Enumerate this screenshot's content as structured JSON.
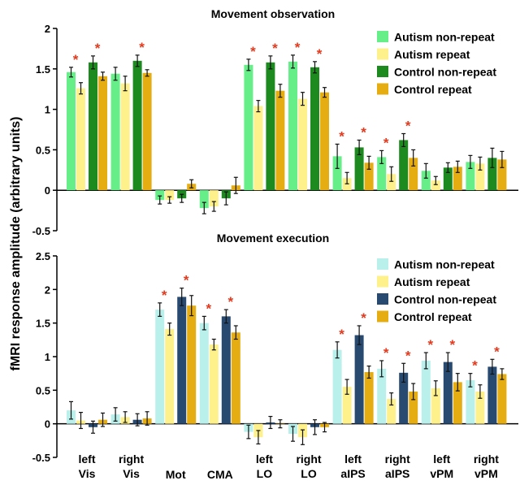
{
  "figure": {
    "ylabel": "fMRI response amplitude (arbitrary units)",
    "categories": [
      "left\nVis",
      "right\nVis",
      "Mot",
      "CMA",
      "left\nLO",
      "right\nLO",
      "left\naIPS",
      "right\naIPS",
      "left\nvPM",
      "right\nvPM"
    ]
  },
  "chart_data": [
    {
      "type": "bar",
      "title": "Movement observation",
      "ylabel": "fMRI response amplitude (arbitrary units)",
      "ylim": [
        -0.5,
        2
      ],
      "yticks": [
        -0.5,
        0,
        0.5,
        1,
        1.5,
        2
      ],
      "ytick_labels": [
        "-0.5",
        "0",
        "0.5",
        "1",
        "1.5",
        "2"
      ],
      "legend_position": "top-right",
      "categories": [
        "left Vis",
        "right Vis",
        "Mot",
        "CMA",
        "left LO",
        "right LO",
        "left aIPS",
        "right aIPS",
        "left vPM",
        "right vPM"
      ],
      "series": [
        {
          "name": "Autism non-repeat",
          "color": "#66ee88",
          "values": [
            1.46,
            1.44,
            -0.12,
            -0.22,
            1.55,
            1.59,
            0.42,
            0.41,
            0.24,
            0.35
          ],
          "errors": [
            0.06,
            0.08,
            0.05,
            0.07,
            0.07,
            0.08,
            0.15,
            0.08,
            0.09,
            0.08
          ]
        },
        {
          "name": "Autism repeat",
          "color": "#fef08a",
          "values": [
            1.26,
            1.32,
            -0.12,
            -0.2,
            1.04,
            1.13,
            0.15,
            0.2,
            0.12,
            0.33
          ],
          "errors": [
            0.07,
            0.09,
            0.04,
            0.06,
            0.07,
            0.08,
            0.07,
            0.09,
            0.05,
            0.08
          ]
        },
        {
          "name": "Control non-repeat",
          "color": "#1c8a1e",
          "values": [
            1.58,
            1.6,
            -0.1,
            -0.1,
            1.58,
            1.52,
            0.53,
            0.62,
            0.28,
            0.4
          ],
          "errors": [
            0.08,
            0.07,
            0.05,
            0.08,
            0.08,
            0.07,
            0.09,
            0.08,
            0.06,
            0.12
          ]
        },
        {
          "name": "Control repeat",
          "color": "#e5ad12",
          "values": [
            1.41,
            1.45,
            0.08,
            0.06,
            1.23,
            1.21,
            0.34,
            0.4,
            0.29,
            0.38
          ],
          "errors": [
            0.05,
            0.04,
            0.05,
            0.1,
            0.08,
            0.06,
            0.08,
            0.1,
            0.07,
            0.1
          ]
        }
      ],
      "significance_markers": [
        {
          "category": "left Vis",
          "group": "Autism"
        },
        {
          "category": "left Vis",
          "group": "Control"
        },
        {
          "category": "right Vis",
          "group": "Control"
        },
        {
          "category": "left LO",
          "group": "Autism"
        },
        {
          "category": "left LO",
          "group": "Control"
        },
        {
          "category": "right LO",
          "group": "Autism"
        },
        {
          "category": "right LO",
          "group": "Control"
        },
        {
          "category": "left aIPS",
          "group": "Autism"
        },
        {
          "category": "left aIPS",
          "group": "Control"
        },
        {
          "category": "right aIPS",
          "group": "Autism"
        },
        {
          "category": "right aIPS",
          "group": "Control"
        }
      ],
      "significance_symbol": "*"
    },
    {
      "type": "bar",
      "title": "Movement execution",
      "ylabel": "fMRI response amplitude (arbitrary units)",
      "ylim": [
        -0.5,
        2.5
      ],
      "yticks": [
        -0.5,
        0,
        0.5,
        1,
        1.5,
        2,
        2.5
      ],
      "ytick_labels": [
        "-0.5",
        "0",
        "0.5",
        "1",
        "1.5",
        "2",
        "2.5"
      ],
      "legend_position": "top-right",
      "categories": [
        "left Vis",
        "right Vis",
        "Mot",
        "CMA",
        "left LO",
        "right LO",
        "left aIPS",
        "right aIPS",
        "left vPM",
        "right vPM"
      ],
      "series": [
        {
          "name": "Autism non-repeat",
          "color": "#b9f0ec",
          "values": [
            0.2,
            0.14,
            1.7,
            1.5,
            -0.12,
            -0.15,
            1.1,
            0.82,
            0.94,
            0.65
          ],
          "errors": [
            0.13,
            0.1,
            0.1,
            0.1,
            0.1,
            0.11,
            0.12,
            0.12,
            0.12,
            0.1
          ]
        },
        {
          "name": "Autism repeat",
          "color": "#fef08a",
          "values": [
            0.05,
            0.1,
            1.41,
            1.18,
            -0.2,
            -0.2,
            0.55,
            0.37,
            0.53,
            0.48
          ],
          "errors": [
            0.12,
            0.08,
            0.09,
            0.08,
            0.1,
            0.11,
            0.11,
            0.09,
            0.11,
            0.1
          ]
        },
        {
          "name": "Control non-repeat",
          "color": "#294a70",
          "values": [
            -0.05,
            0.06,
            1.89,
            1.6,
            0.02,
            -0.05,
            1.32,
            0.76,
            0.92,
            0.85
          ],
          "errors": [
            0.09,
            0.09,
            0.13,
            0.1,
            0.09,
            0.11,
            0.14,
            0.14,
            0.14,
            0.11
          ]
        },
        {
          "name": "Control repeat",
          "color": "#e5ad12",
          "values": [
            0.06,
            0.08,
            1.76,
            1.36,
            0.0,
            -0.05,
            0.77,
            0.48,
            0.62,
            0.74
          ],
          "errors": [
            0.1,
            0.1,
            0.15,
            0.1,
            0.06,
            0.07,
            0.09,
            0.12,
            0.13,
            0.08
          ]
        }
      ],
      "significance_markers": [
        {
          "category": "Mot",
          "group": "Autism"
        },
        {
          "category": "Mot",
          "group": "Control"
        },
        {
          "category": "CMA",
          "group": "Autism"
        },
        {
          "category": "CMA",
          "group": "Control"
        },
        {
          "category": "left aIPS",
          "group": "Autism"
        },
        {
          "category": "left aIPS",
          "group": "Control"
        },
        {
          "category": "right aIPS",
          "group": "Autism"
        },
        {
          "category": "right aIPS",
          "group": "Control"
        },
        {
          "category": "left vPM",
          "group": "Autism"
        },
        {
          "category": "left vPM",
          "group": "Control"
        },
        {
          "category": "right vPM",
          "group": "Autism"
        },
        {
          "category": "right vPM",
          "group": "Control"
        }
      ],
      "significance_symbol": "*"
    }
  ]
}
